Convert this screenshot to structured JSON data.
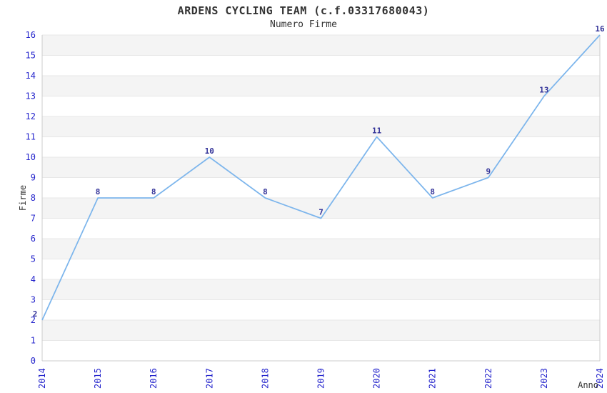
{
  "chart_data": {
    "type": "line",
    "title": "ARDENS CYCLING TEAM (c.f.03317680043)",
    "subtitle": "Numero Firme",
    "xlabel": "Anno",
    "ylabel": "Firme",
    "categories": [
      "2014",
      "2015",
      "2016",
      "2017",
      "2018",
      "2019",
      "2020",
      "2021",
      "2022",
      "2023",
      "2024"
    ],
    "series": [
      {
        "name": "Firme",
        "values": [
          2,
          8,
          8,
          10,
          8,
          7,
          11,
          8,
          9,
          13,
          16
        ]
      }
    ],
    "data_labels": [
      "2",
      "8",
      "8",
      "10",
      "8",
      "7",
      "11",
      "8",
      "9",
      "13",
      "16"
    ],
    "ylim": [
      0,
      16
    ],
    "y_tick_step": 1,
    "y_tick_labels": [
      "0",
      "1",
      "2",
      "3",
      "4",
      "5",
      "6",
      "7",
      "8",
      "9",
      "10",
      "11",
      "12",
      "13",
      "14",
      "15",
      "16"
    ],
    "legend": "none",
    "grid": {
      "alternate_bands": true,
      "band_color": "#f4f4f4",
      "band_edge_color": "#e7e7e7",
      "grid_color": "#e7e7e7",
      "axis_color": "#cccccc"
    },
    "colors": {
      "line": "#7cb5ec",
      "tick_label": "#2424cc",
      "data_label": "#333399",
      "text": "#333333",
      "background": "#ffffff"
    }
  }
}
